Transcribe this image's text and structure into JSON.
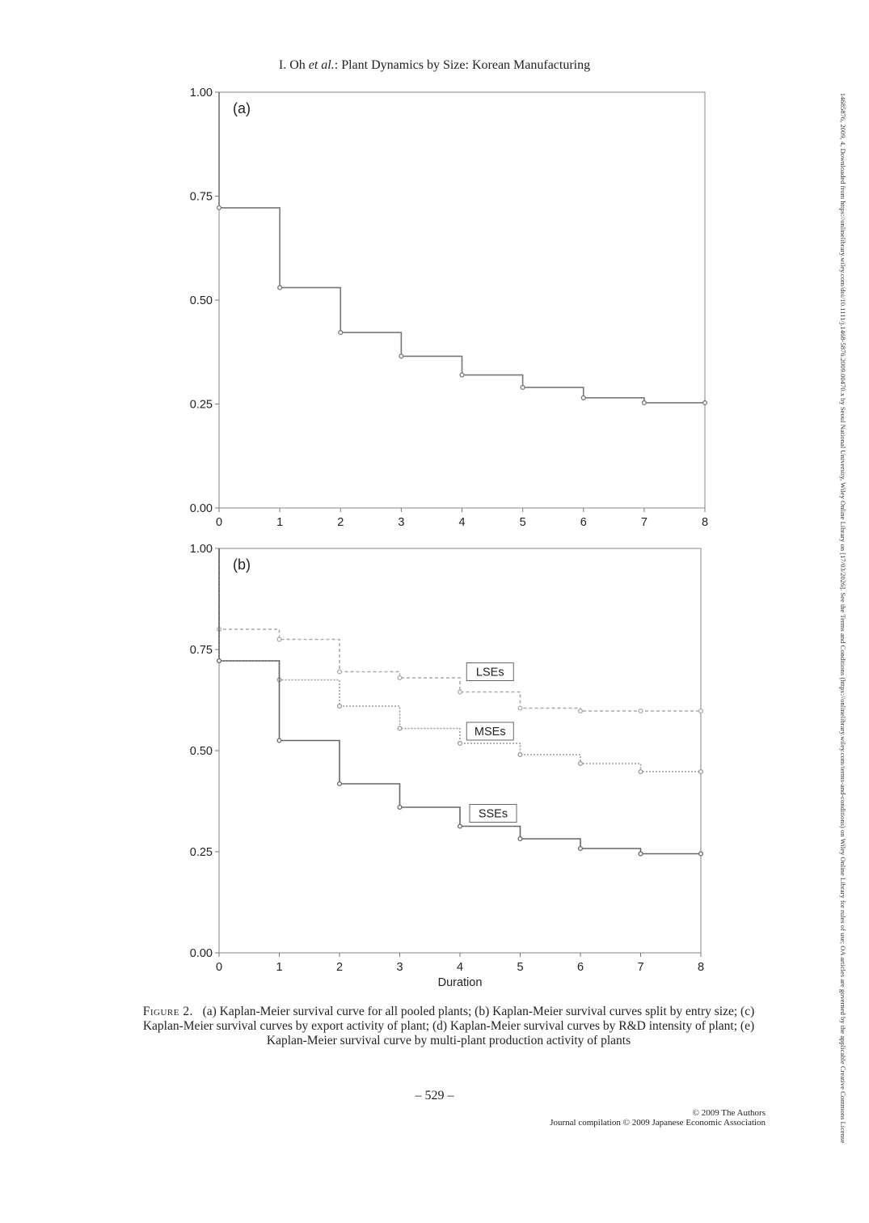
{
  "header": {
    "authors": "I. Oh",
    "etal": "et al.",
    "title": ": Plant Dynamics by Size: Korean Manufacturing"
  },
  "chart_data": [
    {
      "type": "line",
      "step": true,
      "panel_label": "(a)",
      "xlabel": "",
      "ylabel": "",
      "xlim": [
        0,
        8
      ],
      "ylim": [
        0,
        1
      ],
      "x_ticks": [
        "0",
        "1",
        "2",
        "3",
        "4",
        "5",
        "6",
        "7",
        "8"
      ],
      "y_ticks": [
        "0.00",
        "0.25",
        "0.50",
        "0.75",
        "1.00"
      ],
      "grid": false,
      "series": [
        {
          "name": "",
          "color": "#777777",
          "x": [
            0,
            1,
            2,
            3,
            4,
            5,
            6,
            7,
            8
          ],
          "y": [
            0.722,
            0.53,
            0.422,
            0.365,
            0.32,
            0.29,
            0.265,
            0.253,
            0.253
          ]
        }
      ]
    },
    {
      "type": "line",
      "step": true,
      "panel_label": "(b)",
      "xlabel": "Duration",
      "ylabel": "",
      "xlim": [
        0,
        8
      ],
      "ylim": [
        0,
        1
      ],
      "x_ticks": [
        "0",
        "1",
        "2",
        "3",
        "4",
        "5",
        "6",
        "7",
        "8"
      ],
      "y_ticks": [
        "0.00",
        "0.25",
        "0.50",
        "0.75",
        "1.00"
      ],
      "grid": false,
      "series": [
        {
          "name": "LSEs",
          "color": "#aaaaaa",
          "dash": "4,3",
          "start": 0.845,
          "x": [
            0,
            1,
            2,
            3,
            4,
            5,
            6,
            7,
            8
          ],
          "y": [
            0.8,
            0.775,
            0.695,
            0.68,
            0.645,
            0.605,
            0.598,
            0.598,
            0.598
          ]
        },
        {
          "name": "MSEs",
          "color": "#999999",
          "dash": "2,2",
          "start": 0.805,
          "x": [
            0,
            1,
            2,
            3,
            4,
            5,
            6,
            7,
            8
          ],
          "y": [
            0.722,
            0.675,
            0.61,
            0.555,
            0.518,
            0.49,
            0.468,
            0.448,
            0.448
          ]
        },
        {
          "name": "SSEs",
          "color": "#666666",
          "dash": "",
          "start": 0.722,
          "x": [
            0,
            1,
            2,
            3,
            4,
            5,
            6,
            7,
            8
          ],
          "y": [
            0.722,
            0.525,
            0.418,
            0.36,
            0.313,
            0.282,
            0.258,
            0.245,
            0.245
          ]
        }
      ],
      "annotations": [
        {
          "text": "LSEs",
          "x": 4.5,
          "y": 0.695
        },
        {
          "text": "MSEs",
          "x": 4.5,
          "y": 0.548
        },
        {
          "text": "SSEs",
          "x": 4.55,
          "y": 0.345
        }
      ]
    }
  ],
  "caption": {
    "figure_label": "Figure 2.",
    "text": "(a) Kaplan-Meier survival curve for all pooled plants; (b) Kaplan-Meier survival curves split by entry size; (c) Kaplan-Meier survival curves by export activity of plant; (d) Kaplan-Meier survival curves by R&D intensity of plant; (e) Kaplan-Meier survival curve by multi-plant production activity of plants"
  },
  "page_number": "– 529 –",
  "copyright": {
    "line1": "© 2009 The Authors",
    "line2": "Journal compilation © 2009 Japanese Economic Association"
  },
  "sidebar_text": "14685876, 2009, 4, Downloaded from https://onlinelibrary.wiley.com/doi/10.1111/j.1468-5876.2009.00470.x by Seoul National University, Wiley Online Library on [17/03/2026]. See the Terms and Conditions (https://onlinelibrary.wiley.com/terms-and-conditions) on Wiley Online Library for rules of use; OA articles are governed by the applicable Creative Commons License"
}
